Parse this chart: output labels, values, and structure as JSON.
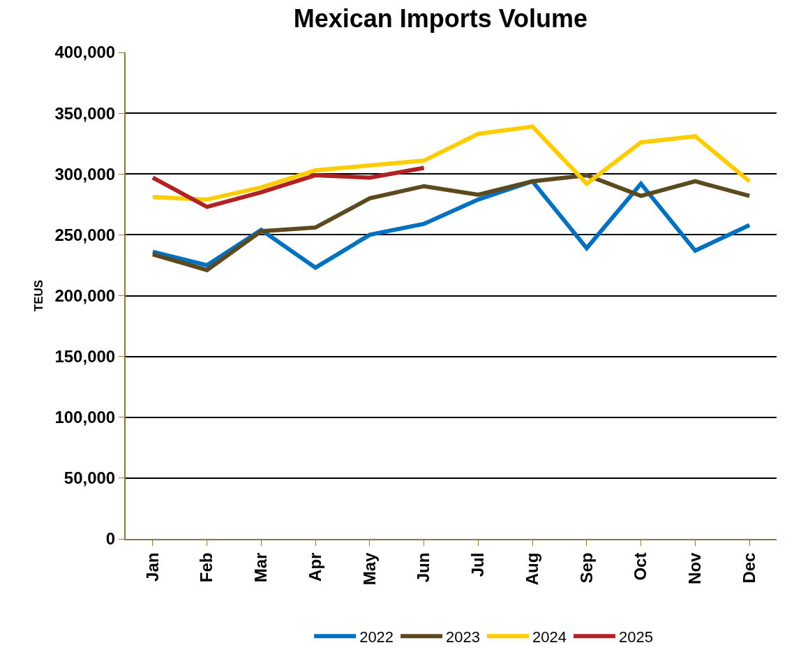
{
  "chart_data": {
    "type": "line",
    "title": "Mexican Imports Volume",
    "ylabel": "TEUS",
    "categories": [
      "Jan",
      "Feb",
      "Mar",
      "Apr",
      "May",
      "Jun",
      "Jul",
      "Aug",
      "Sep",
      "Oct",
      "Nov",
      "Dec"
    ],
    "series": [
      {
        "name": "2022",
        "color": "#0070c0",
        "values": [
          236000,
          225000,
          254000,
          223000,
          250000,
          259000,
          279000,
          294000,
          239000,
          292000,
          237000,
          258000
        ]
      },
      {
        "name": "2023",
        "color": "#5c4a1e",
        "values": [
          234000,
          221000,
          253000,
          256000,
          280000,
          290000,
          283000,
          294000,
          299000,
          282000,
          294000,
          282000
        ]
      },
      {
        "name": "2024",
        "color": "#ffcc00",
        "values": [
          281000,
          279000,
          289000,
          303000,
          307000,
          311000,
          333000,
          339000,
          292000,
          326000,
          331000,
          294000
        ]
      },
      {
        "name": "2025",
        "color": "#b22222",
        "values": [
          297000,
          273000,
          285000,
          299000,
          297000,
          305000,
          null,
          null,
          null,
          null,
          null,
          null
        ]
      }
    ],
    "ylim": [
      0,
      400000
    ],
    "yticks": [
      {
        "value": 0,
        "label": "0"
      },
      {
        "value": 50000,
        "label": "50,000"
      },
      {
        "value": 100000,
        "label": "100,000"
      },
      {
        "value": 150000,
        "label": "150,000"
      },
      {
        "value": 200000,
        "label": "200,000"
      },
      {
        "value": 250000,
        "label": "250,000"
      },
      {
        "value": 300000,
        "label": "300,000"
      },
      {
        "value": 350000,
        "label": "350,000"
      },
      {
        "value": 400000,
        "label": "400,000"
      }
    ],
    "grid": "y",
    "legend": "bottom",
    "marker": "none",
    "line_style": "solid"
  }
}
